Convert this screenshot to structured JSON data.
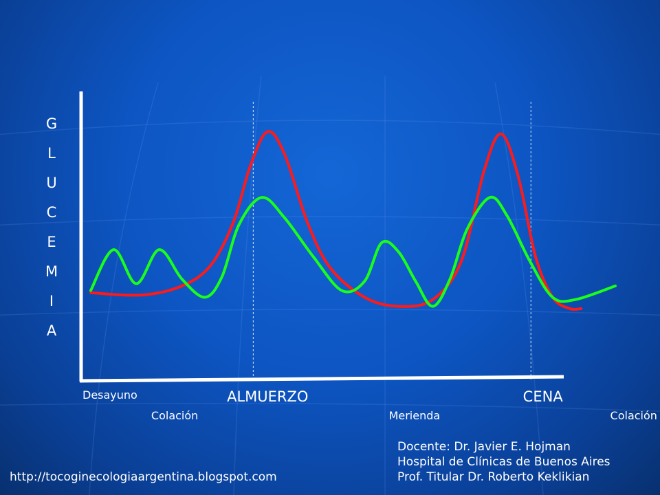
{
  "chart_data": {
    "type": "line",
    "xlabel": "",
    "ylabel": "GLUCEMIA",
    "ylim": [
      0,
      100
    ],
    "meal_labels": [
      {
        "key": "desayuno",
        "text": "Desayuno",
        "x": 0.0,
        "size": "small"
      },
      {
        "key": "colacion1",
        "text": "Colación",
        "x": 14.7,
        "size": "small"
      },
      {
        "key": "almuerzo",
        "text": "ALMUERZO",
        "x": 31.0,
        "size": "large"
      },
      {
        "key": "merienda",
        "text": "Merienda",
        "x": 56.8,
        "size": "small"
      },
      {
        "key": "cena",
        "text": "CENA",
        "x": 79.3,
        "size": "large"
      },
      {
        "key": "colacion2",
        "text": "Colación",
        "x": 95.2,
        "size": "small"
      }
    ],
    "vertical_markers": [
      28.5,
      77.2
    ],
    "series": [
      {
        "color": "#ff1a1a",
        "points": [
          [
            0,
            24
          ],
          [
            9,
            23
          ],
          [
            16,
            27
          ],
          [
            21,
            36
          ],
          [
            25,
            55
          ],
          [
            28,
            80
          ],
          [
            31,
            95
          ],
          [
            34,
            85
          ],
          [
            38,
            55
          ],
          [
            42,
            35
          ],
          [
            48,
            22
          ],
          [
            54,
            18
          ],
          [
            60,
            21
          ],
          [
            65,
            38
          ],
          [
            69,
            78
          ],
          [
            72,
            94
          ],
          [
            75,
            75
          ],
          [
            78,
            40
          ],
          [
            81,
            22
          ],
          [
            84,
            17
          ],
          [
            86,
            17
          ]
        ]
      },
      {
        "color": "#1aff1a",
        "points": [
          [
            0,
            25
          ],
          [
            4,
            43
          ],
          [
            8,
            28
          ],
          [
            12,
            43
          ],
          [
            16,
            30
          ],
          [
            20,
            22
          ],
          [
            23,
            31
          ],
          [
            26,
            54
          ],
          [
            30,
            66
          ],
          [
            34,
            57
          ],
          [
            39,
            40
          ],
          [
            44,
            25
          ],
          [
            48,
            29
          ],
          [
            51,
            46
          ],
          [
            54,
            42
          ],
          [
            57,
            29
          ],
          [
            60,
            18
          ],
          [
            63,
            30
          ],
          [
            66,
            52
          ],
          [
            70,
            66
          ],
          [
            73,
            58
          ],
          [
            77,
            38
          ],
          [
            81,
            22
          ],
          [
            85,
            21
          ],
          [
            92,
            27
          ]
        ]
      }
    ]
  },
  "credits": {
    "line1": "Docente: Dr. Javier E. Hojman",
    "line2": "Hospital de Clínicas de Buenos Aires",
    "line3": "Prof. Titular Dr. Roberto Keklikian"
  },
  "url": "http://tocoginecologiaargentina.blogspot.com",
  "colors": {
    "background": "#0d55c2",
    "axis": "#ffffff"
  }
}
